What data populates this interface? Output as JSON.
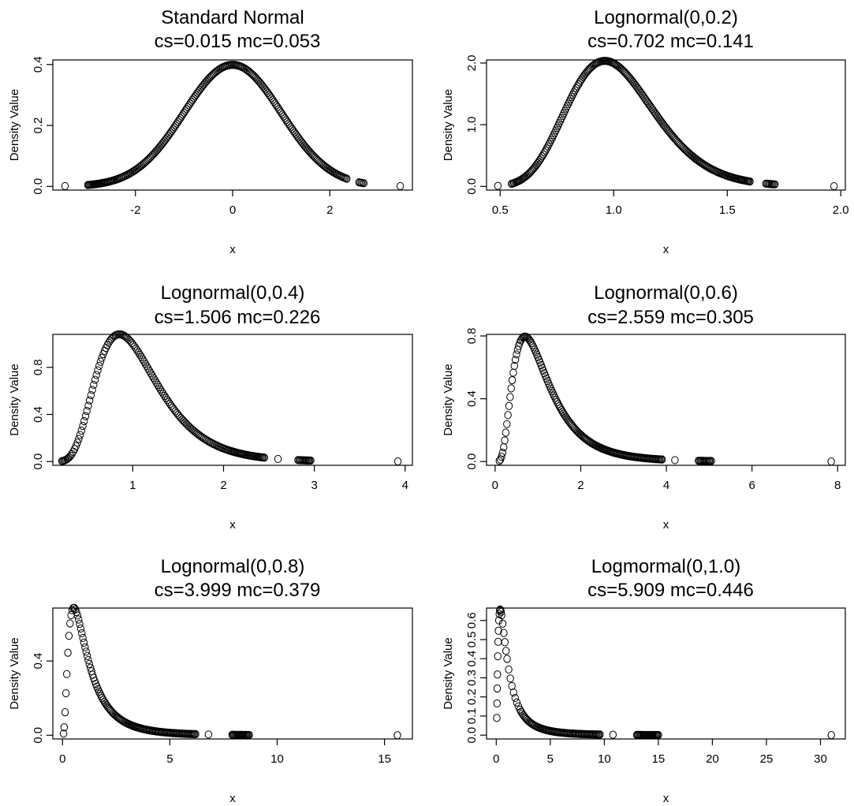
{
  "chart_data": [
    {
      "type": "scatter",
      "title": "Standard Normal",
      "subtitle": "cs=0.015 mc=0.053",
      "xlabel": "x",
      "ylabel": "Density Value",
      "xlim": [
        -3.7,
        3.7
      ],
      "ylim": [
        -0.012,
        0.415
      ],
      "xticks": [
        -2,
        0,
        2
      ],
      "xtick_labels": [
        "-2",
        "0",
        "2"
      ],
      "yticks": [
        0.0,
        0.2,
        0.4
      ],
      "ytick_labels": [
        "0.0",
        "0.2",
        "0.4"
      ],
      "distribution": "normal",
      "x": [
        -3.45,
        -2.98,
        -2.92,
        -2.72,
        -2.66,
        -2.55,
        -2.42,
        -2.35,
        -2.3,
        -2.25,
        -2.2,
        -2.15,
        -2.1,
        -2.05,
        -2.0,
        -1.95,
        -1.9,
        -1.85,
        -1.8,
        -1.75,
        -1.7,
        -1.65,
        -1.6,
        -1.55,
        -1.5,
        -1.45,
        -1.4,
        -1.35,
        -1.3,
        -1.25,
        -1.2,
        -1.15,
        -1.1,
        -1.05,
        -1.0,
        -0.95,
        -0.9,
        -0.85,
        -0.8,
        -0.75,
        -0.7,
        -0.65,
        -0.6,
        -0.55,
        -0.5,
        -0.45,
        -0.4,
        -0.35,
        -0.3,
        -0.25,
        -0.2,
        -0.15,
        -0.1,
        -0.05,
        0.0,
        0.05,
        0.1,
        0.15,
        0.2,
        0.25,
        0.3,
        0.35,
        0.4,
        0.45,
        0.5,
        0.55,
        0.6,
        0.65,
        0.7,
        0.75,
        0.8,
        0.85,
        0.9,
        0.95,
        1.0,
        1.05,
        1.1,
        1.15,
        1.2,
        1.25,
        1.3,
        1.35,
        1.4,
        1.45,
        1.5,
        1.55,
        1.6,
        1.65,
        1.7,
        1.75,
        1.8,
        1.85,
        1.9,
        1.95,
        2.0,
        2.05,
        2.1,
        2.15,
        2.2,
        2.25,
        2.3,
        2.35,
        2.6,
        2.65,
        2.7,
        3.45
      ]
    },
    {
      "type": "scatter",
      "title": "Lognormal(0,0.2)",
      "subtitle": "cs=0.702 mc=0.141",
      "xlabel": "x",
      "ylabel": "Density Value",
      "xlim": [
        0.44,
        2.02
      ],
      "ylim": [
        -0.06,
        2.05
      ],
      "xticks": [
        0.5,
        1.0,
        1.5,
        2.0
      ],
      "xtick_labels": [
        "0.5",
        "1.0",
        "1.5",
        "2.0"
      ],
      "yticks": [
        0.0,
        1.0,
        2.0
      ],
      "ytick_labels": [
        "0.0",
        "1.0",
        "2.0"
      ],
      "distribution": "lognormal",
      "sigma": 0.2,
      "x": [
        0.49,
        0.55,
        0.57,
        0.6,
        0.62,
        0.64,
        0.66,
        0.68,
        0.7,
        0.72,
        0.74,
        0.76,
        0.78,
        0.8,
        0.82,
        0.84,
        0.86,
        0.88,
        0.9,
        0.92,
        0.94,
        0.96,
        0.98,
        1.0,
        1.02,
        1.04,
        1.06,
        1.08,
        1.1,
        1.12,
        1.14,
        1.16,
        1.18,
        1.2,
        1.22,
        1.24,
        1.26,
        1.28,
        1.3,
        1.32,
        1.34,
        1.36,
        1.38,
        1.4,
        1.42,
        1.44,
        1.46,
        1.48,
        1.5,
        1.52,
        1.54,
        1.56,
        1.6,
        1.67,
        1.69,
        1.71,
        1.97
      ]
    },
    {
      "type": "scatter",
      "title": "Lognormal(0,0.4)",
      "subtitle": "cs=1.506 mc=0.226",
      "xlabel": "x",
      "ylabel": "Density Value",
      "xlim": [
        0.12,
        4.08
      ],
      "ylim": [
        -0.032,
        1.08
      ],
      "xticks": [
        1,
        2,
        3,
        4
      ],
      "xtick_labels": [
        "1",
        "2",
        "3",
        "4"
      ],
      "yticks": [
        0.0,
        0.4,
        0.8
      ],
      "ytick_labels": [
        "0.0",
        "0.4",
        "0.8"
      ],
      "distribution": "lognormal",
      "sigma": 0.4,
      "x": [
        0.22,
        0.3,
        0.33,
        0.36,
        0.39,
        0.42,
        0.45,
        0.48,
        0.51,
        0.54,
        0.57,
        0.6,
        0.63,
        0.66,
        0.69,
        0.72,
        0.75,
        0.78,
        0.81,
        0.84,
        0.87,
        0.9,
        0.93,
        0.96,
        0.99,
        1.02,
        1.05,
        1.08,
        1.11,
        1.14,
        1.17,
        1.2,
        1.23,
        1.26,
        1.29,
        1.32,
        1.35,
        1.38,
        1.41,
        1.44,
        1.47,
        1.5,
        1.53,
        1.56,
        1.59,
        1.62,
        1.65,
        1.68,
        1.71,
        1.74,
        1.77,
        1.8,
        1.83,
        1.86,
        1.89,
        1.92,
        1.95,
        1.98,
        2.01,
        2.04,
        2.1,
        2.2,
        2.25,
        2.3,
        2.35,
        2.4,
        2.45,
        2.6,
        2.82,
        2.88,
        2.96,
        3.92
      ]
    },
    {
      "type": "scatter",
      "title": "Lognormal(0,0.6)",
      "subtitle": "cs=2.559 mc=0.305",
      "xlabel": "x",
      "ylabel": "Density Value",
      "xlim": [
        -0.2,
        8.18
      ],
      "ylim": [
        -0.024,
        0.81
      ],
      "xticks": [
        0,
        2,
        4,
        6,
        8
      ],
      "xtick_labels": [
        "0",
        "2",
        "4",
        "6",
        "8"
      ],
      "yticks": [
        0.0,
        0.4,
        0.8
      ],
      "ytick_labels": [
        "0.0",
        "0.4",
        "0.8"
      ],
      "distribution": "lognormal",
      "sigma": 0.6,
      "x": [
        0.1,
        0.15,
        0.2,
        0.25,
        0.3,
        0.35,
        0.4,
        0.45,
        0.5,
        0.55,
        0.6,
        0.65,
        0.7,
        0.75,
        0.8,
        0.85,
        0.9,
        0.95,
        1.0,
        1.05,
        1.1,
        1.15,
        1.2,
        1.25,
        1.3,
        1.35,
        1.4,
        1.45,
        1.5,
        1.55,
        1.6,
        1.65,
        1.7,
        1.75,
        1.8,
        1.85,
        1.9,
        1.95,
        2.0,
        2.1,
        2.2,
        2.3,
        2.4,
        2.5,
        2.6,
        2.7,
        2.8,
        2.9,
        3.0,
        3.1,
        3.2,
        3.3,
        3.4,
        3.5,
        3.6,
        3.7,
        3.8,
        3.9,
        4.2,
        4.75,
        4.9,
        5.05,
        7.85
      ]
    },
    {
      "type": "scatter",
      "title": "Lognormal(0,0.8)",
      "subtitle": "cs=3.999 mc=0.379",
      "xlabel": "x",
      "ylabel": "Density Value",
      "xlim": [
        -0.45,
        16.3
      ],
      "ylim": [
        -0.02,
        0.685
      ],
      "xticks": [
        0,
        5,
        10,
        15
      ],
      "xtick_labels": [
        "0",
        "5",
        "10",
        "15"
      ],
      "yticks": [
        0.0,
        0.4
      ],
      "ytick_labels": [
        "0.0",
        "0.4"
      ],
      "distribution": "lognormal",
      "sigma": 0.8,
      "x": [
        0.05,
        0.08,
        0.12,
        0.16,
        0.2,
        0.25,
        0.3,
        0.35,
        0.4,
        0.45,
        0.5,
        0.55,
        0.6,
        0.7,
        0.8,
        0.9,
        1.0,
        1.1,
        1.2,
        1.3,
        1.4,
        1.5,
        1.6,
        1.7,
        1.8,
        1.9,
        2.0,
        2.1,
        2.2,
        2.3,
        2.4,
        2.5,
        2.6,
        2.7,
        2.8,
        2.9,
        3.0,
        3.2,
        3.4,
        3.6,
        3.8,
        4.0,
        4.2,
        4.4,
        4.7,
        5.0,
        5.3,
        5.6,
        5.9,
        6.2,
        6.8,
        7.9,
        8.3,
        8.7,
        15.6
      ]
    },
    {
      "type": "scatter",
      "title": "Logmormal(0,1.0)",
      "subtitle": "cs=5.909 mc=0.446",
      "xlabel": "x",
      "ylabel": "Density Value",
      "xlim": [
        -0.9,
        32.3
      ],
      "ylim": [
        -0.02,
        0.665
      ],
      "xticks": [
        0,
        5,
        10,
        15,
        20,
        25,
        30
      ],
      "xtick_labels": [
        "0",
        "5",
        "10",
        "15",
        "20",
        "25",
        "30"
      ],
      "yticks": [
        0.0,
        0.1,
        0.2,
        0.3,
        0.4,
        0.5,
        0.6
      ],
      "ytick_labels": [
        "0.0",
        "0.1",
        "0.2",
        "0.3",
        "0.4",
        "0.5",
        "0.6"
      ],
      "distribution": "lognormal",
      "sigma": 1.0,
      "x": [
        0.05,
        0.07,
        0.09,
        0.11,
        0.14,
        0.17,
        0.2,
        0.24,
        0.28,
        0.32,
        0.36,
        0.4,
        0.45,
        0.5,
        0.6,
        0.7,
        0.8,
        0.9,
        1.0,
        1.15,
        1.3,
        1.45,
        1.6,
        1.75,
        1.9,
        2.05,
        2.2,
        2.4,
        2.6,
        2.8,
        3.0,
        3.3,
        3.6,
        3.9,
        4.2,
        4.6,
        5.0,
        5.5,
        6.0,
        6.5,
        7.0,
        7.5,
        8.0,
        8.5,
        9.0,
        9.6,
        10.8,
        13.0,
        14.0,
        15.0,
        31.0
      ]
    }
  ]
}
